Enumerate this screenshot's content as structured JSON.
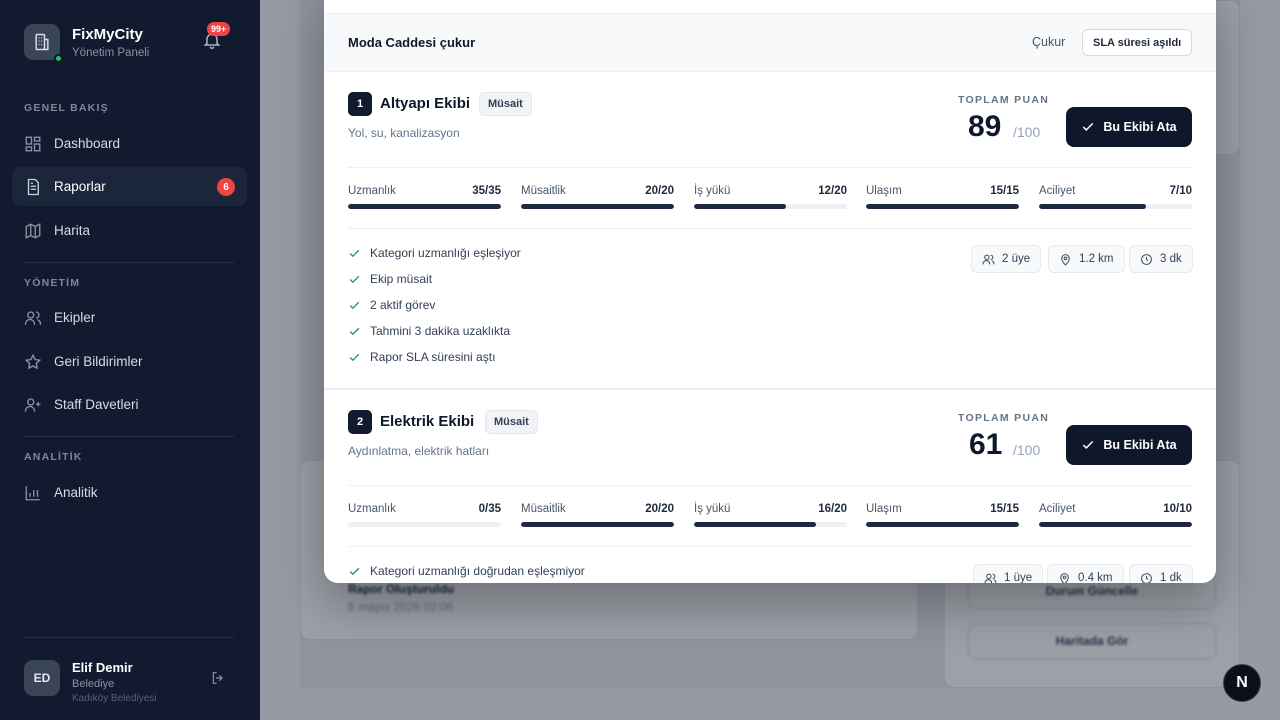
{
  "brand": {
    "name": "FixMyCity",
    "subtitle": "Yönetim Paneli",
    "notifications": "99+"
  },
  "nav": {
    "overview_title": "GENEL BAKIŞ",
    "management_title": "YÖNETİM",
    "analytics_title": "ANALİTİK",
    "items": [
      {
        "label": "Dashboard"
      },
      {
        "label": "Raporlar",
        "count": "6"
      },
      {
        "label": "Harita"
      },
      {
        "label": "Ekipler"
      },
      {
        "label": "Geri Bildirimler"
      },
      {
        "label": "Staff Davetleri"
      },
      {
        "label": "Analitik"
      }
    ]
  },
  "user": {
    "initials": "ED",
    "name": "Elif Demir",
    "role": "Belediye",
    "org": "Kadıköy Belediyesi"
  },
  "background": {
    "status_title": "Rapor Oluşturuldu",
    "status_date": "8 mayıs 2026 02:06",
    "update_status": "Durum Güncelle",
    "view_map": "Haritada Gör"
  },
  "modal": {
    "report_title": "Moda Caddesi çukur",
    "category": "Çukur",
    "sla_badge": "SLA süresi aşıldı",
    "score_label": "TOPLAM PUAN",
    "score_max": "/100",
    "assign_label": "Bu Ekibi Ata",
    "teams": [
      {
        "rank": "1",
        "name": "Altyapı Ekibi",
        "status": "Müsait",
        "description": "Yol, su, kanalizasyon",
        "score": "89",
        "metrics": [
          {
            "name": "Uzmanlık",
            "value": "35/35",
            "fraction": 1.0
          },
          {
            "name": "Müsaitlik",
            "value": "20/20",
            "fraction": 1.0
          },
          {
            "name": "İş yükü",
            "value": "12/20",
            "fraction": 0.6
          },
          {
            "name": "Ulaşım",
            "value": "15/15",
            "fraction": 1.0
          },
          {
            "name": "Aciliyet",
            "value": "7/10",
            "fraction": 0.7
          }
        ],
        "reasons": [
          "Kategori uzmanlığı eşleşiyor",
          "Ekip müsait",
          "2 aktif görev",
          "Tahmini 3 dakika uzaklıkta",
          "Rapor SLA süresini aştı"
        ],
        "members": "2 üye",
        "distance": "1.2 km",
        "eta": "3 dk"
      },
      {
        "rank": "2",
        "name": "Elektrik Ekibi",
        "status": "Müsait",
        "description": "Aydınlatma, elektrik hatları",
        "score": "61",
        "metrics": [
          {
            "name": "Uzmanlık",
            "value": "0/35",
            "fraction": 0.0
          },
          {
            "name": "Müsaitlik",
            "value": "20/20",
            "fraction": 1.0
          },
          {
            "name": "İş yükü",
            "value": "16/20",
            "fraction": 0.8
          },
          {
            "name": "Ulaşım",
            "value": "15/15",
            "fraction": 1.0
          },
          {
            "name": "Aciliyet",
            "value": "10/10",
            "fraction": 1.0
          }
        ],
        "reasons": [
          "Kategori uzmanlığı doğrudan eşleşmiyor"
        ],
        "members": "1 üye",
        "distance": "0.4 km",
        "eta": "1 dk"
      }
    ]
  },
  "floating_button": "N",
  "colors": {
    "sidebar": "#111a2e",
    "accent": "#0f172a",
    "badge": "#ef4444",
    "online": "#22c55e"
  }
}
